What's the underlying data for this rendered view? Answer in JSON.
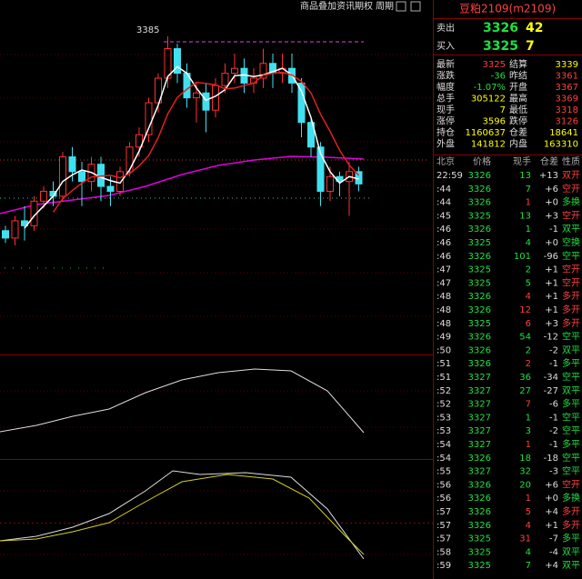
{
  "toolbar": [
    "商品叠加",
    "资讯期权",
    "周期"
  ],
  "chart": {
    "high_label": "3385",
    "candles": [
      {
        "o": 3306,
        "h": 3308,
        "l": 3301,
        "c": 3303
      },
      {
        "o": 3303,
        "h": 3312,
        "l": 3300,
        "c": 3310
      },
      {
        "o": 3310,
        "h": 3316,
        "l": 3302,
        "c": 3308
      },
      {
        "o": 3308,
        "h": 3320,
        "l": 3306,
        "c": 3318
      },
      {
        "o": 3318,
        "h": 3324,
        "l": 3315,
        "c": 3322
      },
      {
        "o": 3322,
        "h": 3326,
        "l": 3316,
        "c": 3320
      },
      {
        "o": 3320,
        "h": 3338,
        "l": 3318,
        "c": 3336
      },
      {
        "o": 3336,
        "h": 3340,
        "l": 3326,
        "c": 3330
      },
      {
        "o": 3330,
        "h": 3334,
        "l": 3316,
        "c": 3326
      },
      {
        "o": 3326,
        "h": 3336,
        "l": 3322,
        "c": 3333
      },
      {
        "o": 3333,
        "h": 3336,
        "l": 3318,
        "c": 3324
      },
      {
        "o": 3324,
        "h": 3328,
        "l": 3316,
        "c": 3322
      },
      {
        "o": 3322,
        "h": 3332,
        "l": 3320,
        "c": 3330
      },
      {
        "o": 3330,
        "h": 3342,
        "l": 3328,
        "c": 3340
      },
      {
        "o": 3340,
        "h": 3348,
        "l": 3336,
        "c": 3345
      },
      {
        "o": 3345,
        "h": 3360,
        "l": 3342,
        "c": 3358
      },
      {
        "o": 3358,
        "h": 3370,
        "l": 3354,
        "c": 3368
      },
      {
        "o": 3368,
        "h": 3385,
        "l": 3364,
        "c": 3380
      },
      {
        "o": 3380,
        "h": 3382,
        "l": 3366,
        "c": 3370
      },
      {
        "o": 3370,
        "h": 3374,
        "l": 3356,
        "c": 3360
      },
      {
        "o": 3360,
        "h": 3366,
        "l": 3350,
        "c": 3362
      },
      {
        "o": 3362,
        "h": 3366,
        "l": 3346,
        "c": 3355
      },
      {
        "o": 3355,
        "h": 3368,
        "l": 3352,
        "c": 3365
      },
      {
        "o": 3365,
        "h": 3374,
        "l": 3362,
        "c": 3370
      },
      {
        "o": 3370,
        "h": 3378,
        "l": 3366,
        "c": 3372
      },
      {
        "o": 3372,
        "h": 3376,
        "l": 3362,
        "c": 3366
      },
      {
        "o": 3366,
        "h": 3372,
        "l": 3362,
        "c": 3368
      },
      {
        "o": 3368,
        "h": 3380,
        "l": 3364,
        "c": 3374
      },
      {
        "o": 3374,
        "h": 3378,
        "l": 3364,
        "c": 3370
      },
      {
        "o": 3370,
        "h": 3378,
        "l": 3366,
        "c": 3372
      },
      {
        "o": 3372,
        "h": 3378,
        "l": 3362,
        "c": 3366
      },
      {
        "o": 3366,
        "h": 3368,
        "l": 3344,
        "c": 3350
      },
      {
        "o": 3350,
        "h": 3352,
        "l": 3336,
        "c": 3340
      },
      {
        "o": 3340,
        "h": 3342,
        "l": 3316,
        "c": 3322
      },
      {
        "o": 3322,
        "h": 3332,
        "l": 3318,
        "c": 3328
      },
      {
        "o": 3328,
        "h": 3330,
        "l": 3320,
        "c": 3326
      },
      {
        "o": 3326,
        "h": 3334,
        "l": 3312,
        "c": 3330
      },
      {
        "o": 3330,
        "h": 3332,
        "l": 3322,
        "c": 3325
      }
    ]
  },
  "quote": {
    "title": "豆粕2109(m2109)",
    "ask": {
      "label": "卖出",
      "price": "3326",
      "vol": "42"
    },
    "bid": {
      "label": "买入",
      "price": "3325",
      "vol": "7"
    },
    "rows": [
      [
        "最新",
        "3325",
        "结算",
        "3339"
      ],
      [
        "涨跌",
        "-36",
        "昨结",
        "3361"
      ],
      [
        "幅度",
        "-1.07%",
        "开盘",
        "3367"
      ],
      [
        "总手",
        "305122",
        "最高",
        "3369"
      ],
      [
        "现手",
        "7",
        "最低",
        "3318"
      ],
      [
        "涨停",
        "3596",
        "跌停",
        "3126"
      ],
      [
        "持仓",
        "1160637",
        "仓差",
        "18641"
      ],
      [
        "外盘",
        "141812",
        "内盘",
        "163310"
      ]
    ]
  },
  "ticks": {
    "header": [
      "北京",
      "价格",
      "现手",
      "仓差",
      "性质"
    ],
    "rows": [
      [
        "22:59",
        "3326",
        "13",
        "+13",
        "双开"
      ],
      [
        ":44",
        "3326",
        "7",
        "+6",
        "空开"
      ],
      [
        ":44",
        "3326",
        "1",
        "+0",
        "多换"
      ],
      [
        ":45",
        "3325",
        "13",
        "+3",
        "空开"
      ],
      [
        ":46",
        "3326",
        "1",
        "-1",
        "双平"
      ],
      [
        ":46",
        "3325",
        "4",
        "+0",
        "空换"
      ],
      [
        ":46",
        "3326",
        "101",
        "-96",
        "空平"
      ],
      [
        ":47",
        "3325",
        "2",
        "+1",
        "空开"
      ],
      [
        ":47",
        "3325",
        "5",
        "+1",
        "空开"
      ],
      [
        ":48",
        "3326",
        "4",
        "+1",
        "多开"
      ],
      [
        ":48",
        "3326",
        "12",
        "+1",
        "多开"
      ],
      [
        ":48",
        "3325",
        "6",
        "+3",
        "多开"
      ],
      [
        ":49",
        "3326",
        "54",
        "-12",
        "空平"
      ],
      [
        ":50",
        "3326",
        "2",
        "-2",
        "双平"
      ],
      [
        ":51",
        "3326",
        "2",
        "-1",
        "多平"
      ],
      [
        ":51",
        "3327",
        "36",
        "-34",
        "空平"
      ],
      [
        ":52",
        "3327",
        "27",
        "-27",
        "双平"
      ],
      [
        ":52",
        "3327",
        "7",
        "-6",
        "多平"
      ],
      [
        ":53",
        "3327",
        "1",
        "-1",
        "空平"
      ],
      [
        ":53",
        "3327",
        "3",
        "-2",
        "空平"
      ],
      [
        ":54",
        "3327",
        "1",
        "-1",
        "多平"
      ],
      [
        ":54",
        "3326",
        "18",
        "-18",
        "空平"
      ],
      [
        ":55",
        "3327",
        "32",
        "-3",
        "空平"
      ],
      [
        ":56",
        "3326",
        "20",
        "+6",
        "空开"
      ],
      [
        ":56",
        "3326",
        "1",
        "+0",
        "多换"
      ],
      [
        ":57",
        "3326",
        "5",
        "+4",
        "多开"
      ],
      [
        ":57",
        "3326",
        "4",
        "+1",
        "多开"
      ],
      [
        ":57",
        "3325",
        "31",
        "-7",
        "多平"
      ],
      [
        ":58",
        "3325",
        "4",
        "-4",
        "双平"
      ],
      [
        ":59",
        "3325",
        "7",
        "+4",
        "双平"
      ]
    ]
  }
}
